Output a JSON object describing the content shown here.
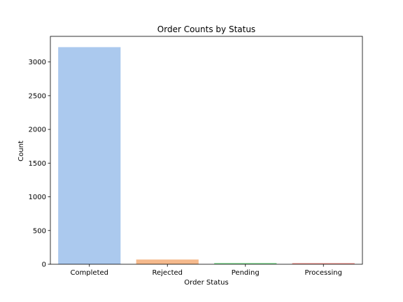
{
  "chart_data": {
    "type": "bar",
    "title": "Order Counts by Status",
    "xlabel": "Order Status",
    "ylabel": "Count",
    "categories": [
      "Completed",
      "Rejected",
      "Pending",
      "Processing"
    ],
    "values": [
      3220,
      70,
      20,
      18
    ],
    "colors": [
      "#abc9ee",
      "#f5b98c",
      "#92e0a0",
      "#f3a09b"
    ],
    "ylim": [
      0,
      3380
    ],
    "yticks": [
      0,
      500,
      1000,
      1500,
      2000,
      2500,
      3000
    ],
    "grid": false,
    "legend": "none"
  }
}
